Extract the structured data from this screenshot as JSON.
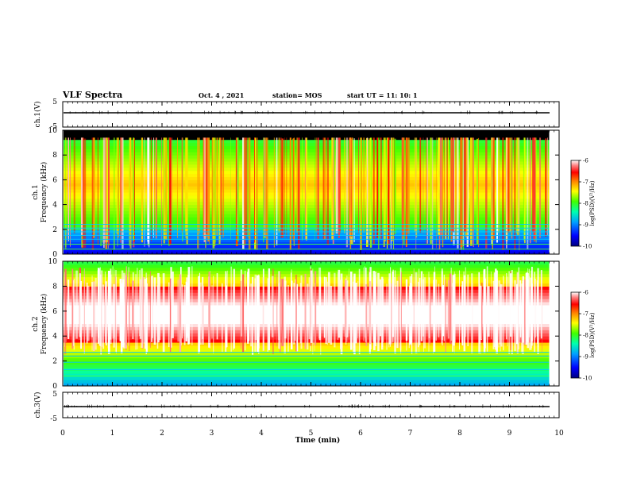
{
  "header": {
    "title": "VLF Spectra",
    "date": "Oct. 4 , 2021",
    "station": "station= MOS",
    "start": "start UT =   11: 10: 1"
  },
  "chart_data": [
    {
      "type": "line",
      "panel": "ch1-waveform",
      "ylabel": "ch.1(V)",
      "ylim": [
        -5,
        5
      ],
      "y_ticks": [
        "5",
        "-5"
      ],
      "level": -1.5
    },
    {
      "type": "heatmap",
      "panel": "ch1-spectrogram",
      "ylabel_line1": "ch.1",
      "ylabel_line2": "Frequency (kHz)",
      "ylim": [
        0,
        10
      ],
      "y_ticks": [
        "0",
        "2",
        "4",
        "6",
        "8",
        "10"
      ],
      "colorbar": {
        "label": "log(PSD)(V²/Hz)",
        "range": [
          -10,
          -6
        ],
        "ticks": [
          "-6",
          "-7",
          "-8",
          "-9",
          "-10"
        ]
      },
      "dominant_band_khz": [
        2,
        9.3
      ],
      "mean_log_psd": -8.3
    },
    {
      "type": "heatmap",
      "panel": "ch2-spectrogram",
      "ylabel_line1": "ch.2",
      "ylabel_line2": "Frequency (kHz)",
      "ylim": [
        0,
        10
      ],
      "y_ticks": [
        "0",
        "2",
        "4",
        "6",
        "8",
        "10"
      ],
      "colorbar": {
        "label": "log(PSD)(V²/Hz)",
        "range": [
          -10,
          -6
        ],
        "ticks": [
          "-6",
          "-7",
          "-8",
          "-9",
          "-10"
        ]
      },
      "dominant_band_khz": [
        3.5,
        8
      ],
      "mean_log_psd": -6.8
    },
    {
      "type": "line",
      "panel": "ch3-waveform",
      "ylabel": "ch.3(V)",
      "ylim": [
        -5,
        5
      ],
      "y_ticks": [
        "5",
        "-5"
      ],
      "level": -0.8
    },
    {
      "type": "axis",
      "xlabel": "Time (min)",
      "xlim": [
        0,
        10
      ],
      "x_ticks": [
        "0",
        "1",
        "2",
        "3",
        "4",
        "5",
        "6",
        "7",
        "8",
        "9",
        "10"
      ],
      "data_end_min": 9.8
    }
  ],
  "colors": {
    "scale": [
      "#000000",
      "#00008b",
      "#0000ff",
      "#0080ff",
      "#00e0ff",
      "#00ff80",
      "#80ff00",
      "#ffff00",
      "#ff8000",
      "#ff0000",
      "#ff8080",
      "#ffffff"
    ]
  }
}
